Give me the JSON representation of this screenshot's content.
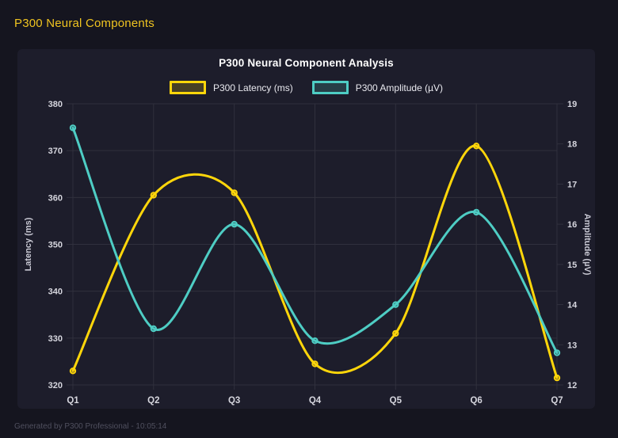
{
  "header": {
    "title": "P300 Neural Components"
  },
  "footer": {
    "text": "Generated by P300 Professional - 10:05:14"
  },
  "theme": {
    "page_bg": "#15151f",
    "panel_bg": "#1d1d2b",
    "grid_color": "#30303d",
    "tick_text_color": "#d6d6de",
    "axis_title_color": "#c9c9d4",
    "chart_title_color": "#ffffff",
    "legend_text_color": "#e9e9ef",
    "header_text_color": "#f0c420",
    "footer_text_color": "#50505f"
  },
  "chart_data": {
    "type": "line",
    "title": "P300 Neural Component Analysis",
    "categories": [
      "Q1",
      "Q2",
      "Q3",
      "Q4",
      "Q5",
      "Q6",
      "Q7"
    ],
    "series": [
      {
        "name": "P300 Latency (ms)",
        "axis": "left",
        "color": "#ffd60a",
        "values": [
          323,
          360.5,
          361,
          324.5,
          331,
          371,
          321.5
        ]
      },
      {
        "name": "P300 Amplitude (µV)",
        "axis": "right",
        "color": "#4ecdc4",
        "values": [
          18.4,
          13.4,
          16.0,
          13.1,
          14.0,
          16.3,
          12.8
        ]
      }
    ],
    "left_axis": {
      "label": "Latency (ms)",
      "min": 320,
      "max": 380,
      "step": 10
    },
    "right_axis": {
      "label": "Amplitude (µV)",
      "min": 12,
      "max": 19,
      "step": 1
    },
    "grid": true,
    "legend_position": "top",
    "smooth": true
  }
}
